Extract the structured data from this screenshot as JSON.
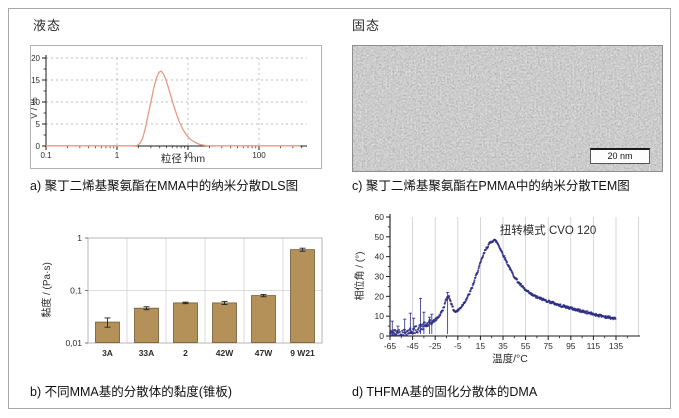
{
  "panels": {
    "a": {
      "state_label": "液态",
      "caption": "a) 聚丁二烯基聚氨酯在MMA中的纳米分散DLS图"
    },
    "b": {
      "caption": "b) 不同MMA基的分散体的黏度(锥板)"
    },
    "c": {
      "state_label": "固态",
      "caption": "c) 聚丁二烯基聚氨酯在PMMA中的纳米分散TEM图",
      "scale_bar": "20 nm"
    },
    "d": {
      "caption": "d) THFMA基的固化分散体的DMA"
    }
  },
  "colors": {
    "frame_border": "#a8a8a8",
    "dls_curve": "#e59a84",
    "bar_fill": "#b5915a",
    "dma_points": "#2b2b85",
    "gridline": "#c9c9c9"
  },
  "chart_data": [
    {
      "id": "dls",
      "type": "line",
      "title": "",
      "xlabel": "粒径 / nm",
      "ylabel": "V / %",
      "x_scale": "log",
      "xlim": [
        0.1,
        400
      ],
      "ylim": [
        0,
        20
      ],
      "x_ticks": [
        0.1,
        1,
        10,
        100
      ],
      "x_tick_labels": [
        "0.1",
        "1",
        "10",
        "100"
      ],
      "y_ticks": [
        0,
        5,
        10,
        15,
        20
      ],
      "grid": "dashed",
      "line_color": "#e59a84",
      "points": [
        [
          0.1,
          0.05
        ],
        [
          0.5,
          0.05
        ],
        [
          1,
          0.05
        ],
        [
          1.6,
          0.05
        ],
        [
          1.9,
          0.1
        ],
        [
          2.1,
          0.6
        ],
        [
          2.3,
          1.8
        ],
        [
          2.5,
          4
        ],
        [
          2.7,
          6.5
        ],
        [
          3.0,
          10
        ],
        [
          3.3,
          13.2
        ],
        [
          3.6,
          15.5
        ],
        [
          3.9,
          16.8
        ],
        [
          4.2,
          17
        ],
        [
          4.5,
          16.4
        ],
        [
          4.9,
          15
        ],
        [
          5.4,
          12.8
        ],
        [
          6.0,
          10.3
        ],
        [
          6.7,
          7.8
        ],
        [
          7.5,
          5.6
        ],
        [
          8.4,
          3.9
        ],
        [
          9.5,
          2.5
        ],
        [
          11,
          1.4
        ],
        [
          13,
          0.7
        ],
        [
          15,
          0.3
        ],
        [
          18,
          0.1
        ],
        [
          25,
          0.05
        ],
        [
          50,
          0.05
        ],
        [
          100,
          0.05
        ],
        [
          380,
          0.05
        ]
      ]
    },
    {
      "id": "viscosity",
      "type": "bar",
      "title": "",
      "xlabel": "",
      "ylabel": "黏度 / (Pa·s)",
      "y_scale": "log",
      "ylim": [
        0.01,
        1
      ],
      "y_ticks": [
        1,
        0.1,
        0.01
      ],
      "y_tick_labels": [
        "1",
        "0,1",
        "0,01"
      ],
      "categories": [
        "3A",
        "33A",
        "2",
        "42W",
        "47W",
        "9 W21"
      ],
      "values": [
        0.025,
        0.046,
        0.058,
        0.058,
        0.08,
        0.6
      ],
      "errors": [
        0.005,
        0.003,
        0.002,
        0.004,
        0.004,
        0.04
      ],
      "bar_color": "#b5915a",
      "bar_edge": "#6f5a35"
    },
    {
      "id": "dma",
      "type": "scatter",
      "title": "",
      "annotation": "扭转模式 CVO 120",
      "xlabel": "温度/°C",
      "ylabel": "相位角 / (°)",
      "xlim": [
        -65,
        155
      ],
      "ylim": [
        0,
        60
      ],
      "x_ticks": [
        -65,
        -45,
        -25,
        -5,
        15,
        35,
        55,
        75,
        95,
        115,
        135
      ],
      "y_ticks": [
        0,
        10,
        20,
        30,
        40,
        50,
        60
      ],
      "point_color": "#2b2b85",
      "curve_keypoints": [
        [
          -65,
          1.2
        ],
        [
          -62,
          1.5
        ],
        [
          -58,
          1.8
        ],
        [
          -54,
          1.6
        ],
        [
          -50,
          2.2
        ],
        [
          -46,
          2.6
        ],
        [
          -42,
          3.2
        ],
        [
          -38,
          4.2
        ],
        [
          -34,
          5.2
        ],
        [
          -30,
          6.2
        ],
        [
          -27,
          7.2
        ],
        [
          -24,
          8.5
        ],
        [
          -21,
          10.5
        ],
        [
          -18,
          13.5
        ],
        [
          -16,
          17
        ],
        [
          -14.5,
          19.5
        ],
        [
          -13,
          20
        ],
        [
          -11.5,
          18
        ],
        [
          -10,
          15
        ],
        [
          -8.5,
          13
        ],
        [
          -7,
          12.2
        ],
        [
          -5,
          12.8
        ],
        [
          -3,
          14
        ],
        [
          -1,
          15.5
        ],
        [
          2,
          18
        ],
        [
          5,
          21
        ],
        [
          8,
          25
        ],
        [
          11,
          30
        ],
        [
          14,
          35
        ],
        [
          17,
          40
        ],
        [
          20,
          44
        ],
        [
          23,
          46.5
        ],
        [
          25,
          47.8
        ],
        [
          27,
          48.3
        ],
        [
          29,
          47.8
        ],
        [
          31,
          46
        ],
        [
          33,
          43.5
        ],
        [
          36,
          40
        ],
        [
          39,
          36.5
        ],
        [
          42,
          33
        ],
        [
          45,
          30
        ],
        [
          48,
          27.5
        ],
        [
          51,
          25.5
        ],
        [
          55,
          23
        ],
        [
          60,
          21
        ],
        [
          65,
          19.5
        ],
        [
          70,
          18.5
        ],
        [
          75,
          17.5
        ],
        [
          80,
          16.5
        ],
        [
          85,
          15.5
        ],
        [
          90,
          14.8
        ],
        [
          95,
          14
        ],
        [
          100,
          13.2
        ],
        [
          105,
          12.5
        ],
        [
          110,
          11.8
        ],
        [
          115,
          11
        ],
        [
          120,
          10.4
        ],
        [
          125,
          9.8
        ],
        [
          130,
          9.2
        ],
        [
          135,
          8.6
        ]
      ],
      "spikes": [
        [
          -63,
          7.5
        ],
        [
          -58,
          5
        ],
        [
          -52,
          8.5
        ],
        [
          -47,
          11.5
        ],
        [
          -44,
          9
        ],
        [
          -38,
          19
        ],
        [
          -35,
          12
        ],
        [
          -30,
          9.5
        ],
        [
          -28,
          11
        ],
        [
          -14,
          22
        ]
      ]
    }
  ]
}
